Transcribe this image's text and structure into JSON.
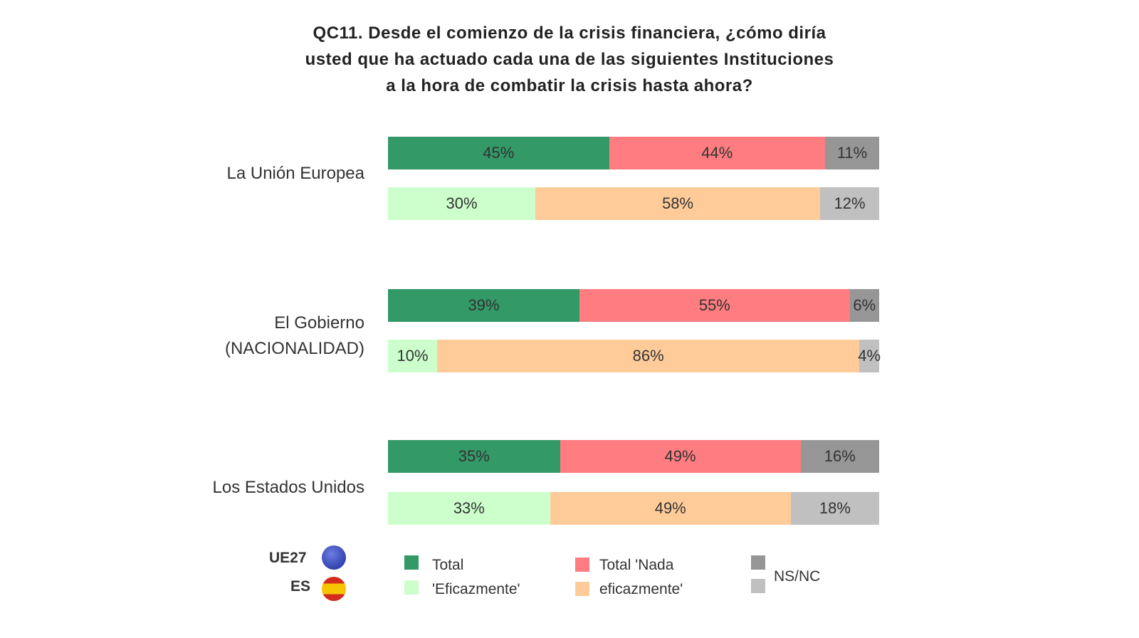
{
  "chart_data": {
    "type": "bar",
    "orientation": "horizontal",
    "stacked": true,
    "title": [
      "QC11. Desde el comienzo de la crisis financiera, ¿cómo diría",
      "usted que ha actuado cada una de las siguientes Instituciones",
      "a la hora de combatir la crisis hasta ahora?"
    ],
    "categories": [
      [
        "La Unión Europea"
      ],
      [
        "El Gobierno",
        "(NACIONALIDAD)"
      ],
      [
        "Los Estados Unidos"
      ]
    ],
    "groups": [
      "UE27",
      "ES"
    ],
    "data": [
      {
        "UE27": [
          45,
          44,
          11
        ],
        "ES": [
          30,
          58,
          12
        ]
      },
      {
        "UE27": [
          39,
          55,
          6
        ],
        "ES": [
          10,
          86,
          4
        ]
      },
      {
        "UE27": [
          35,
          49,
          16
        ],
        "ES": [
          33,
          49,
          18
        ]
      }
    ],
    "series": [
      {
        "name": "Total 'Eficazmente'",
        "colors": {
          "UE27": "#339966",
          "ES": "#ccffcc"
        }
      },
      {
        "name": "Total 'Nada eficazmente'",
        "colors": {
          "UE27": "#ff7c80",
          "ES": "#ffcc99"
        }
      },
      {
        "name": "NS/NC",
        "colors": {
          "UE27": "#969696",
          "ES": "#c0c0c0"
        }
      }
    ],
    "legend": {
      "groups": [
        "UE27",
        "ES"
      ],
      "items": [
        {
          "line1": "Total",
          "line2": "'Eficazmente'"
        },
        {
          "line1": "Total 'Nada",
          "line2": "eficazmente'"
        },
        {
          "line1": "NS/NC",
          "line2": ""
        }
      ],
      "position": "bottom"
    },
    "xlim": [
      0,
      100
    ]
  }
}
